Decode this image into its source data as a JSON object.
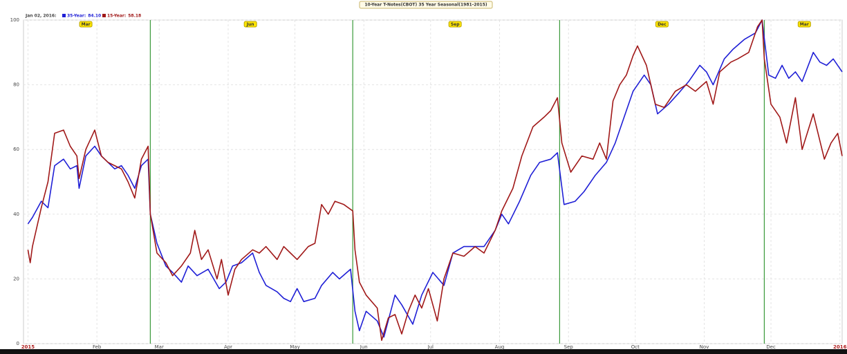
{
  "chart_data": {
    "type": "line",
    "title": "10-Year T-Notes(CBOT) 35 Year Seasonal(1981-2015)",
    "legend_date": "Jan 02, 2016:",
    "xlim": [
      -2,
      366
    ],
    "xticks": [
      {
        "value": 0,
        "label": "2015"
      },
      {
        "value": 31,
        "label": "Feb"
      },
      {
        "value": 59,
        "label": "Mar"
      },
      {
        "value": 90,
        "label": "Apr"
      },
      {
        "value": 120,
        "label": "May"
      },
      {
        "value": 151,
        "label": "Jun"
      },
      {
        "value": 181,
        "label": "Jul"
      },
      {
        "value": 212,
        "label": "Aug"
      },
      {
        "value": 243,
        "label": "Sep"
      },
      {
        "value": 273,
        "label": "Oct"
      },
      {
        "value": 304,
        "label": "Nov"
      },
      {
        "value": 334,
        "label": "Dec"
      },
      {
        "value": 365,
        "label": "2016"
      }
    ],
    "ylim": [
      0,
      100
    ],
    "yticks": [
      0,
      20,
      40,
      60,
      80,
      100
    ],
    "grid": true,
    "rollovers": [
      55,
      146,
      239,
      331
    ],
    "contracts": [
      {
        "x": 26,
        "label": "Mar"
      },
      {
        "x": 100,
        "label": "Jun"
      },
      {
        "x": 192,
        "label": "Sep"
      },
      {
        "x": 285,
        "label": "Dec"
      },
      {
        "x": 349,
        "label": "Mar"
      }
    ],
    "series": [
      {
        "name": "35-Year:",
        "legend_value": "84.10",
        "color": "#1f1fd6",
        "x": [
          0,
          2,
          6,
          9,
          12,
          16,
          19,
          22,
          23,
          26,
          30,
          33,
          36,
          39,
          42,
          45,
          48,
          51,
          54,
          55,
          58,
          62,
          65,
          69,
          72,
          76,
          81,
          86,
          89,
          92,
          96,
          101,
          104,
          107,
          112,
          115,
          118,
          121,
          124,
          129,
          132,
          137,
          140,
          145,
          147,
          149,
          152,
          157,
          160,
          165,
          168,
          173,
          177,
          182,
          187,
          191,
          196,
          201,
          205,
          210,
          213,
          216,
          221,
          226,
          230,
          235,
          238,
          241,
          246,
          250,
          255,
          260,
          264,
          269,
          272,
          277,
          280,
          283,
          288,
          292,
          297,
          302,
          305,
          308,
          313,
          317,
          322,
          327,
          330,
          333,
          336,
          339,
          342,
          345,
          348,
          353,
          356,
          359,
          362,
          366
        ],
        "values": [
          37,
          39,
          44,
          42,
          55,
          57,
          54,
          55,
          48,
          58,
          61,
          58,
          56,
          54,
          55,
          52,
          48,
          55,
          57,
          40,
          31,
          24,
          22,
          19,
          24,
          21,
          23,
          17,
          19,
          24,
          25,
          28,
          22,
          18,
          16,
          14,
          13,
          17,
          13,
          14,
          18,
          22,
          20,
          23,
          10,
          4,
          10,
          7,
          2,
          15,
          12,
          6,
          15,
          22,
          18,
          28,
          30,
          30,
          30,
          35,
          40,
          37,
          44,
          52,
          56,
          57,
          59,
          43,
          44,
          47,
          52,
          56,
          62,
          72,
          78,
          83,
          80,
          71,
          74,
          77,
          81,
          86,
          84,
          80,
          88,
          91,
          94,
          96,
          100,
          83,
          82,
          86,
          82,
          84,
          81,
          90,
          87,
          86,
          88,
          84
        ]
      },
      {
        "name": "15-Year:",
        "legend_value": "58.18",
        "color": "#a01818",
        "x": [
          0,
          1,
          2,
          6,
          9,
          12,
          16,
          19,
          22,
          23,
          26,
          30,
          33,
          36,
          39,
          42,
          45,
          48,
          51,
          54,
          55,
          58,
          62,
          65,
          69,
          73,
          75,
          78,
          81,
          85,
          87,
          90,
          93,
          96,
          101,
          104,
          107,
          112,
          115,
          118,
          121,
          126,
          129,
          132,
          135,
          138,
          142,
          146,
          147,
          149,
          152,
          157,
          159,
          162,
          165,
          168,
          171,
          174,
          177,
          180,
          184,
          187,
          191,
          196,
          201,
          205,
          210,
          213,
          218,
          222,
          227,
          232,
          235,
          238,
          240,
          244,
          249,
          254,
          257,
          260,
          263,
          266,
          269,
          272,
          274,
          278,
          282,
          286,
          291,
          296,
          300,
          305,
          308,
          311,
          316,
          319,
          324,
          328,
          330,
          331,
          334,
          338,
          341,
          345,
          348,
          353,
          358,
          361,
          364,
          366
        ],
        "values": [
          29,
          25,
          30,
          42,
          50,
          65,
          66,
          61,
          58,
          51,
          60,
          66,
          58,
          56,
          55,
          54,
          50,
          45,
          57,
          61,
          40,
          28,
          25,
          21,
          24,
          28,
          35,
          26,
          29,
          20,
          26,
          15,
          23,
          26,
          29,
          28,
          30,
          26,
          30,
          28,
          26,
          30,
          31,
          43,
          40,
          44,
          43,
          41,
          29,
          19,
          15,
          11,
          1,
          8,
          9,
          3,
          10,
          15,
          11,
          17,
          7,
          20,
          28,
          27,
          30,
          28,
          35,
          41,
          48,
          58,
          67,
          70,
          72,
          76,
          62,
          53,
          58,
          57,
          62,
          57,
          75,
          80,
          83,
          89,
          92,
          86,
          74,
          73,
          78,
          80,
          78,
          81,
          74,
          84,
          87,
          88,
          90,
          98,
          100,
          88,
          74,
          70,
          62,
          76,
          60,
          71,
          57,
          62,
          65,
          58
        ]
      }
    ]
  }
}
